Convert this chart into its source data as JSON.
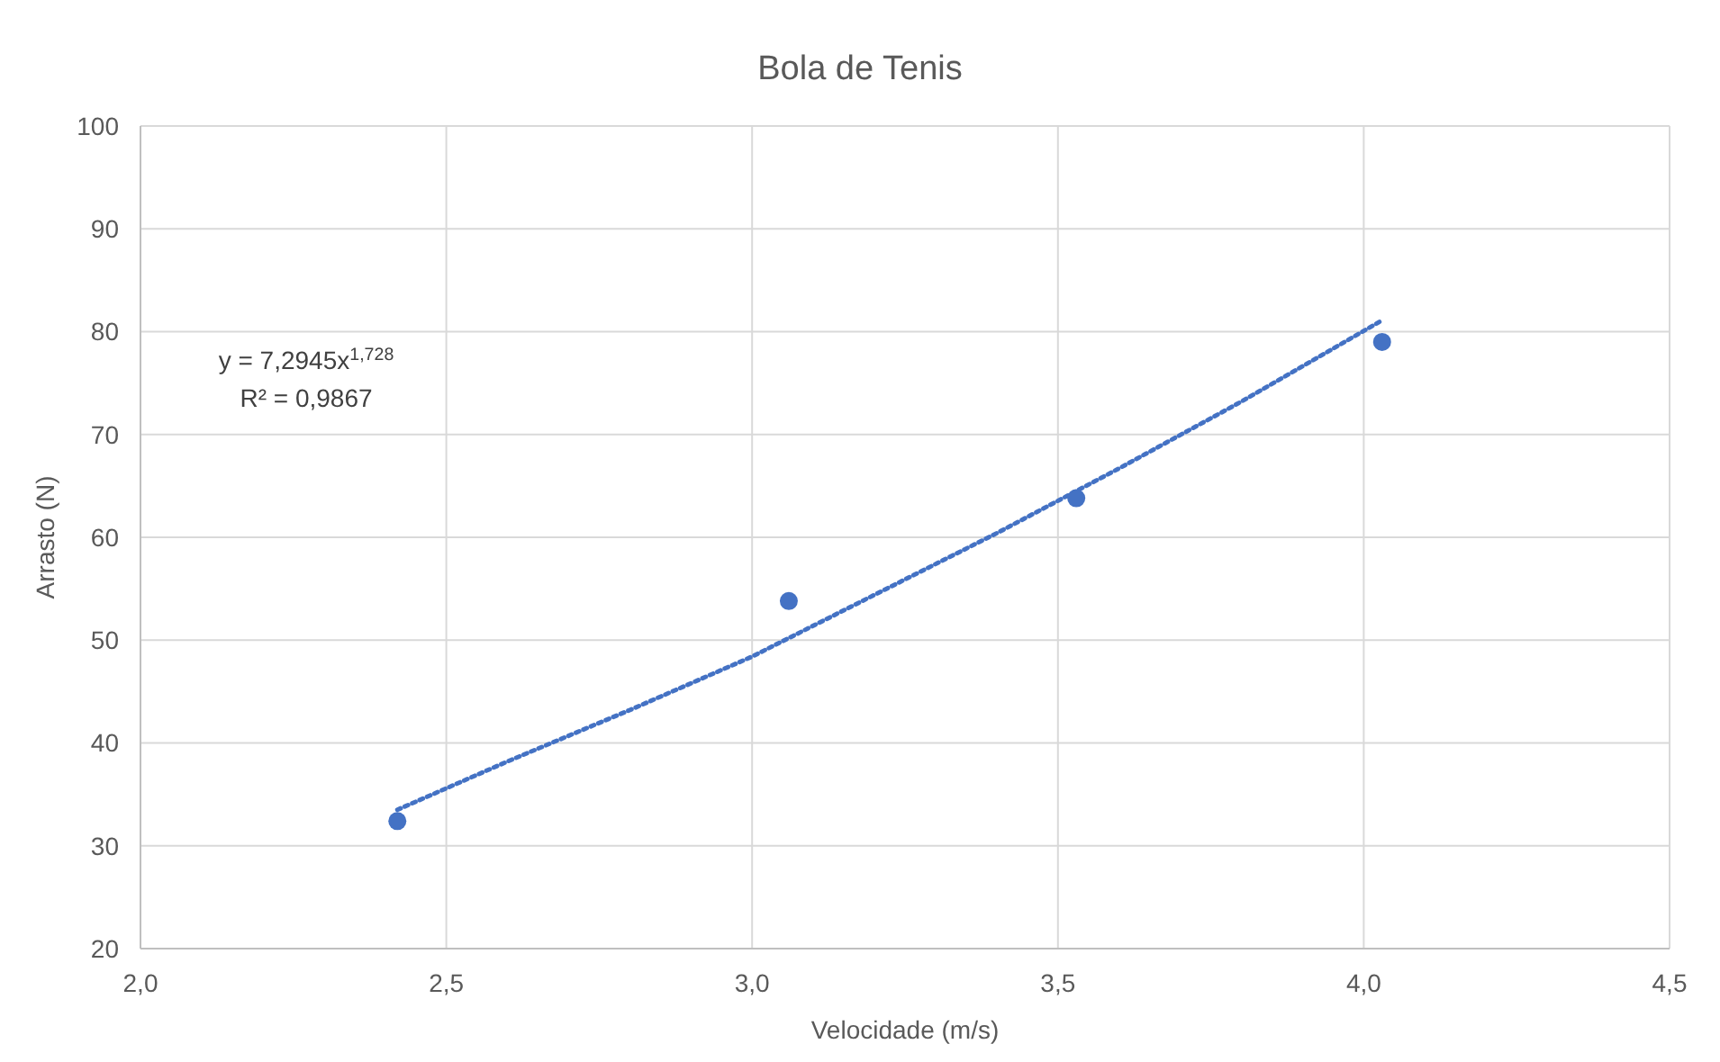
{
  "chart_data": {
    "type": "scatter",
    "title": "Bola de Tenis",
    "xlabel": "Velocidade (m/s)",
    "ylabel": "Arrasto (N)",
    "xlim": [
      2,
      4.5
    ],
    "xticks": [
      {
        "value": 2,
        "label": "2,0"
      },
      {
        "value": 2.5,
        "label": "2,5"
      },
      {
        "value": 3,
        "label": "3,0"
      },
      {
        "value": 3.5,
        "label": "3,5"
      },
      {
        "value": 4,
        "label": "4,0"
      },
      {
        "value": 4.5,
        "label": "4,5"
      }
    ],
    "ylim": [
      20,
      100
    ],
    "yticks": [
      20,
      30,
      40,
      50,
      60,
      70,
      80,
      90,
      100
    ],
    "grid": true,
    "series": [
      {
        "color": "#4472c4",
        "marker": "circle",
        "x": [
          2.42,
          3.06,
          3.53,
          4.03
        ],
        "values": [
          32.4,
          53.8,
          63.8,
          79
        ]
      },
      {
        "type": "line",
        "color": "#4472c4",
        "line_style": "dotted",
        "marker": "none",
        "x": [
          2.42,
          2.6,
          2.8,
          3.0,
          3.2,
          3.4,
          3.6,
          3.8,
          4.03
        ],
        "values": [
          33.5,
          38.2,
          43.2,
          48.4,
          54.4,
          60.4,
          66.7,
          73.2,
          81.1
        ]
      }
    ],
    "annotations": [
      "y = 7,2945x$^{1,728}$",
      "R² = 0,9867"
    ]
  }
}
